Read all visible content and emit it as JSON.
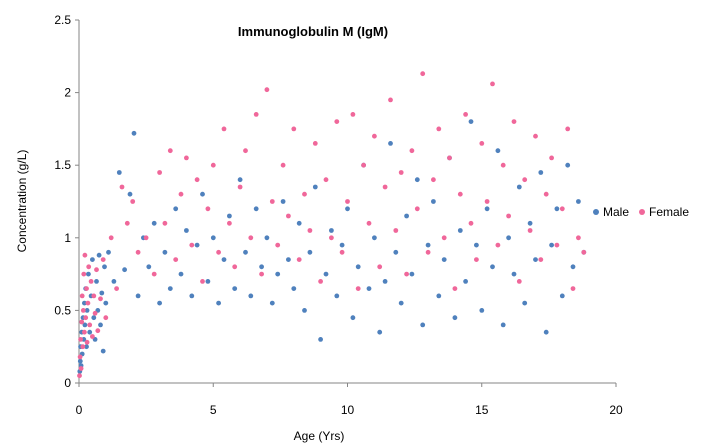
{
  "chart_data": {
    "type": "scatter",
    "title": "Immunoglobulin M (IgM)",
    "xlabel": "Age (Yrs)",
    "ylabel": "Concentration (g/L)",
    "xlim": [
      0,
      20
    ],
    "ylim": [
      0,
      2.5
    ],
    "x_ticks": [
      "0",
      "5",
      "10",
      "15",
      "20"
    ],
    "y_ticks": [
      "0",
      "0.5",
      "1",
      "1.5",
      "2",
      "2.5"
    ],
    "grid": false,
    "legend": "right",
    "colors": {
      "Male": "#4f81bd",
      "Female": "#f0679a"
    },
    "series": [
      {
        "name": "Male",
        "points": [
          [
            0.03,
            0.08
          ],
          [
            0.05,
            0.15
          ],
          [
            0.06,
            0.25
          ],
          [
            0.08,
            0.12
          ],
          [
            0.1,
            0.35
          ],
          [
            0.12,
            0.2
          ],
          [
            0.15,
            0.45
          ],
          [
            0.18,
            0.3
          ],
          [
            0.2,
            0.55
          ],
          [
            0.22,
            0.4
          ],
          [
            0.25,
            0.65
          ],
          [
            0.28,
            0.25
          ],
          [
            0.3,
            0.5
          ],
          [
            0.35,
            0.75
          ],
          [
            0.4,
            0.35
          ],
          [
            0.45,
            0.6
          ],
          [
            0.5,
            0.85
          ],
          [
            0.55,
            0.45
          ],
          [
            0.6,
            0.3
          ],
          [
            0.65,
            0.7
          ],
          [
            0.7,
            0.5
          ],
          [
            0.75,
            0.88
          ],
          [
            0.8,
            0.4
          ],
          [
            0.85,
            0.62
          ],
          [
            0.9,
            0.22
          ],
          [
            0.95,
            0.8
          ],
          [
            1.0,
            0.55
          ],
          [
            1.1,
            0.9
          ],
          [
            1.3,
            0.7
          ],
          [
            1.5,
            1.45
          ],
          [
            1.7,
            0.78
          ],
          [
            1.9,
            1.3
          ],
          [
            2.05,
            1.72
          ],
          [
            2.2,
            0.6
          ],
          [
            2.4,
            1.0
          ],
          [
            2.6,
            0.8
          ],
          [
            2.8,
            1.1
          ],
          [
            3.0,
            0.55
          ],
          [
            3.2,
            0.9
          ],
          [
            3.4,
            0.65
          ],
          [
            3.6,
            1.2
          ],
          [
            3.8,
            0.75
          ],
          [
            4.0,
            1.05
          ],
          [
            4.2,
            0.6
          ],
          [
            4.4,
            0.95
          ],
          [
            4.6,
            1.3
          ],
          [
            4.8,
            0.7
          ],
          [
            5.0,
            1.0
          ],
          [
            5.2,
            0.55
          ],
          [
            5.4,
            0.85
          ],
          [
            5.6,
            1.15
          ],
          [
            5.8,
            0.65
          ],
          [
            6.0,
            1.4
          ],
          [
            6.2,
            0.9
          ],
          [
            6.4,
            0.6
          ],
          [
            6.6,
            1.2
          ],
          [
            6.8,
            0.8
          ],
          [
            7.0,
            1.0
          ],
          [
            7.2,
            0.55
          ],
          [
            7.4,
            0.75
          ],
          [
            7.6,
            1.25
          ],
          [
            7.8,
            0.85
          ],
          [
            8.0,
            0.65
          ],
          [
            8.2,
            1.1
          ],
          [
            8.4,
            0.5
          ],
          [
            8.6,
            0.9
          ],
          [
            8.8,
            1.35
          ],
          [
            9.0,
            0.3
          ],
          [
            9.2,
            0.75
          ],
          [
            9.4,
            1.05
          ],
          [
            9.6,
            0.6
          ],
          [
            9.8,
            0.95
          ],
          [
            10.0,
            1.2
          ],
          [
            10.2,
            0.45
          ],
          [
            10.4,
            0.8
          ],
          [
            10.6,
            1.5
          ],
          [
            10.8,
            0.65
          ],
          [
            11.0,
            1.0
          ],
          [
            11.2,
            0.35
          ],
          [
            11.4,
            0.7
          ],
          [
            11.6,
            1.65
          ],
          [
            11.8,
            0.9
          ],
          [
            12.0,
            0.55
          ],
          [
            12.2,
            1.15
          ],
          [
            12.4,
            0.75
          ],
          [
            12.6,
            1.4
          ],
          [
            12.8,
            0.4
          ],
          [
            13.0,
            0.95
          ],
          [
            13.2,
            1.25
          ],
          [
            13.4,
            0.6
          ],
          [
            13.6,
            0.85
          ],
          [
            13.8,
            1.55
          ],
          [
            14.0,
            0.45
          ],
          [
            14.2,
            1.05
          ],
          [
            14.4,
            0.7
          ],
          [
            14.6,
            1.8
          ],
          [
            14.8,
            0.95
          ],
          [
            15.0,
            0.5
          ],
          [
            15.2,
            1.2
          ],
          [
            15.4,
            0.8
          ],
          [
            15.6,
            1.6
          ],
          [
            15.8,
            0.4
          ],
          [
            16.0,
            1.0
          ],
          [
            16.2,
            0.75
          ],
          [
            16.4,
            1.35
          ],
          [
            16.6,
            0.55
          ],
          [
            16.8,
            1.1
          ],
          [
            17.0,
            0.85
          ],
          [
            17.2,
            1.45
          ],
          [
            17.4,
            0.35
          ],
          [
            17.6,
            0.95
          ],
          [
            17.8,
            1.2
          ],
          [
            18.0,
            0.6
          ],
          [
            18.2,
            1.5
          ],
          [
            18.4,
            0.8
          ],
          [
            18.6,
            1.25
          ],
          [
            18.8,
            0.9
          ]
        ]
      },
      {
        "name": "Female",
        "points": [
          [
            0.02,
            0.05
          ],
          [
            0.04,
            0.18
          ],
          [
            0.06,
            0.3
          ],
          [
            0.08,
            0.1
          ],
          [
            0.1,
            0.42
          ],
          [
            0.12,
            0.6
          ],
          [
            0.14,
            0.25
          ],
          [
            0.16,
            0.5
          ],
          [
            0.18,
            0.75
          ],
          [
            0.2,
            0.35
          ],
          [
            0.22,
            0.88
          ],
          [
            0.25,
            0.45
          ],
          [
            0.28,
            0.65
          ],
          [
            0.3,
            0.28
          ],
          [
            0.33,
            0.55
          ],
          [
            0.36,
            0.8
          ],
          [
            0.4,
            0.4
          ],
          [
            0.45,
            0.7
          ],
          [
            0.5,
            0.32
          ],
          [
            0.55,
            0.6
          ],
          [
            0.6,
            0.48
          ],
          [
            0.65,
            0.78
          ],
          [
            0.7,
            0.36
          ],
          [
            0.8,
            0.58
          ],
          [
            0.9,
            0.85
          ],
          [
            1.0,
            0.45
          ],
          [
            1.2,
            1.0
          ],
          [
            1.4,
            0.65
          ],
          [
            1.6,
            1.35
          ],
          [
            1.8,
            1.1
          ],
          [
            2.0,
            1.25
          ],
          [
            2.2,
            0.9
          ],
          [
            2.5,
            1.0
          ],
          [
            2.8,
            0.75
          ],
          [
            3.0,
            1.45
          ],
          [
            3.2,
            1.1
          ],
          [
            3.4,
            1.6
          ],
          [
            3.6,
            0.85
          ],
          [
            3.8,
            1.3
          ],
          [
            4.0,
            1.55
          ],
          [
            4.2,
            0.95
          ],
          [
            4.4,
            1.4
          ],
          [
            4.6,
            0.7
          ],
          [
            4.8,
            1.2
          ],
          [
            5.0,
            1.5
          ],
          [
            5.2,
            0.9
          ],
          [
            5.4,
            1.75
          ],
          [
            5.6,
            1.1
          ],
          [
            5.8,
            0.8
          ],
          [
            6.0,
            1.35
          ],
          [
            6.2,
            1.6
          ],
          [
            6.4,
            1.0
          ],
          [
            6.6,
            1.85
          ],
          [
            6.8,
            0.75
          ],
          [
            7.0,
            2.02
          ],
          [
            7.2,
            1.25
          ],
          [
            7.4,
            0.95
          ],
          [
            7.6,
            1.5
          ],
          [
            7.8,
            1.15
          ],
          [
            8.0,
            1.75
          ],
          [
            8.2,
            0.85
          ],
          [
            8.4,
            1.3
          ],
          [
            8.6,
            1.05
          ],
          [
            8.8,
            1.65
          ],
          [
            9.0,
            0.7
          ],
          [
            9.2,
            1.4
          ],
          [
            9.4,
            1.0
          ],
          [
            9.6,
            1.8
          ],
          [
            9.8,
            0.9
          ],
          [
            10.0,
            1.25
          ],
          [
            10.2,
            1.85
          ],
          [
            10.4,
            0.65
          ],
          [
            10.6,
            1.5
          ],
          [
            10.8,
            1.1
          ],
          [
            11.0,
            1.7
          ],
          [
            11.2,
            0.8
          ],
          [
            11.4,
            1.35
          ],
          [
            11.6,
            1.95
          ],
          [
            11.8,
            1.05
          ],
          [
            12.0,
            1.45
          ],
          [
            12.2,
            0.75
          ],
          [
            12.4,
            1.6
          ],
          [
            12.6,
            1.2
          ],
          [
            12.8,
            2.13
          ],
          [
            13.0,
            0.9
          ],
          [
            13.2,
            1.4
          ],
          [
            13.4,
            1.75
          ],
          [
            13.6,
            1.0
          ],
          [
            13.8,
            1.55
          ],
          [
            14.0,
            0.65
          ],
          [
            14.2,
            1.3
          ],
          [
            14.4,
            1.85
          ],
          [
            14.6,
            1.1
          ],
          [
            14.8,
            0.85
          ],
          [
            15.0,
            1.65
          ],
          [
            15.2,
            1.25
          ],
          [
            15.4,
            2.06
          ],
          [
            15.6,
            0.95
          ],
          [
            15.8,
            1.5
          ],
          [
            16.0,
            1.15
          ],
          [
            16.2,
            1.8
          ],
          [
            16.4,
            0.7
          ],
          [
            16.6,
            1.4
          ],
          [
            16.8,
            1.05
          ],
          [
            17.0,
            1.7
          ],
          [
            17.2,
            0.85
          ],
          [
            17.4,
            1.3
          ],
          [
            17.6,
            1.55
          ],
          [
            17.8,
            0.95
          ],
          [
            18.0,
            1.2
          ],
          [
            18.2,
            1.75
          ],
          [
            18.4,
            0.65
          ],
          [
            18.6,
            1.0
          ],
          [
            18.8,
            0.9
          ]
        ]
      }
    ]
  }
}
